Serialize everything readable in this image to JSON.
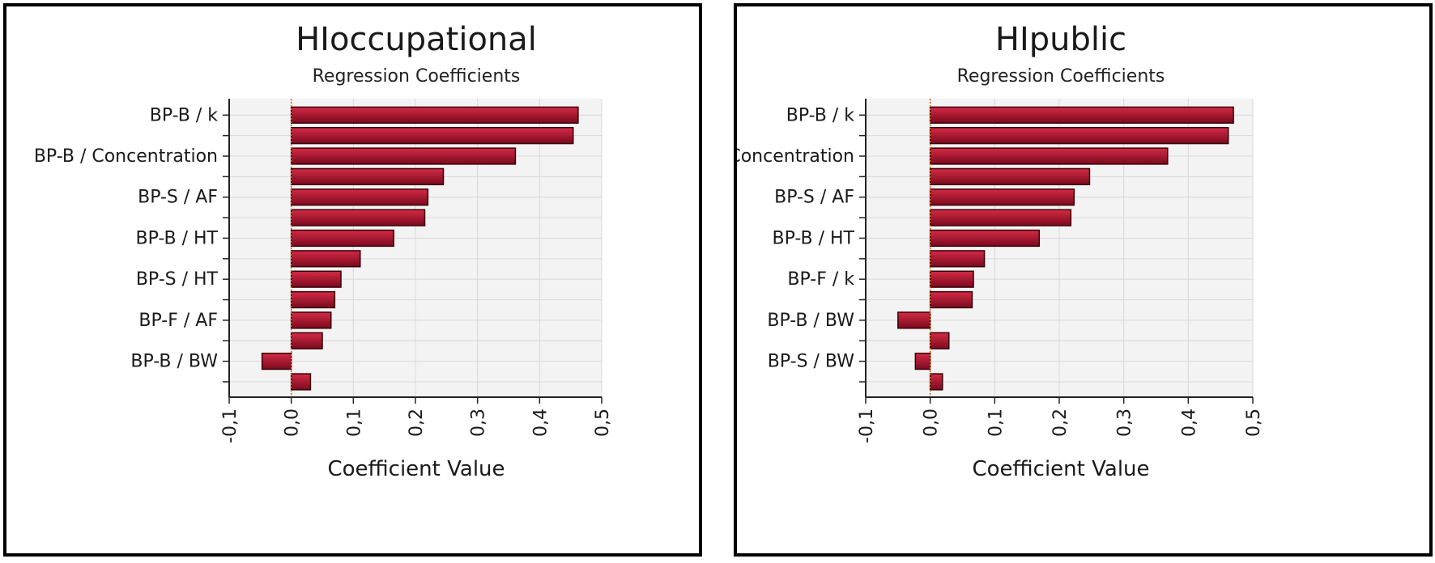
{
  "colors": {
    "bar_fill_dark": "#7a0a1e",
    "bar_fill_light": "#d42a45",
    "bar_stroke": "#3a0008",
    "zero_line": "#d4661c",
    "plot_bg": "#f3f3f3",
    "grid": "#d8d8d8"
  },
  "chart_data": [
    {
      "type": "bar",
      "orientation": "horizontal",
      "title": "HIoccupational",
      "subtitle": "Regression Coefficients",
      "xlabel": "Coefficient Value",
      "xlim": [
        -0.1,
        0.5
      ],
      "xticks": [
        "-0,1",
        "0,0",
        "0,1",
        "0,2",
        "0,3",
        "0,4",
        "0,5"
      ],
      "tick_values": [
        -0.1,
        0,
        0.1,
        0.2,
        0.3,
        0.4,
        0.5
      ],
      "labels_shown": {
        "0": "BP-B / k",
        "2": "BP-B / Concentration",
        "4": "BP-S / AF",
        "6": "BP-B / HT",
        "8": "BP-S / HT",
        "10": "BP-F / AF",
        "12": "BP-B / BW"
      },
      "values": [
        0.462,
        0.454,
        0.361,
        0.245,
        0.22,
        0.215,
        0.165,
        0.111,
        0.08,
        0.07,
        0.064,
        0.05,
        -0.047,
        0.031
      ],
      "grid": true
    },
    {
      "type": "bar",
      "orientation": "horizontal",
      "title": "HIpublic",
      "subtitle": "Regression Coefficients",
      "xlabel": "Coefficient Value",
      "xlim": [
        -0.1,
        0.5
      ],
      "xticks": [
        "-0,1",
        "0,0",
        "0,1",
        "0,2",
        "0,3",
        "0,4",
        "0,5"
      ],
      "tick_values": [
        -0.1,
        0,
        0.1,
        0.2,
        0.3,
        0.4,
        0.5
      ],
      "labels_shown": {
        "0": "BP-B / k",
        "2": "BP-B / Concentration",
        "4": "BP-S / AF",
        "6": "BP-B / HT",
        "8": "BP-F / k",
        "10": "BP-B / BW",
        "12": "BP-S / BW"
      },
      "values": [
        0.47,
        0.462,
        0.368,
        0.247,
        0.223,
        0.218,
        0.169,
        0.084,
        0.067,
        0.065,
        -0.05,
        0.029,
        -0.023,
        0.019
      ],
      "grid": true
    }
  ]
}
